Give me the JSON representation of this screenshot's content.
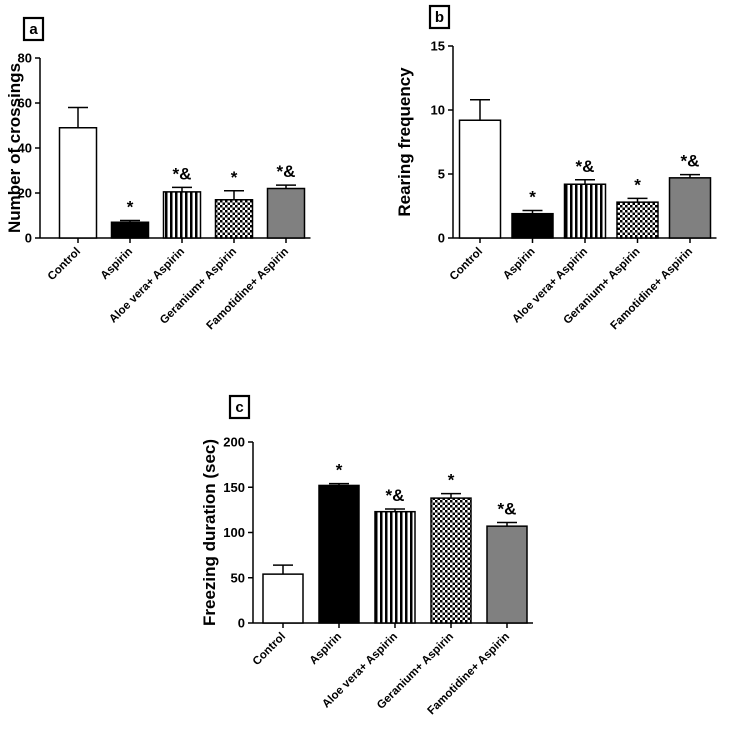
{
  "chart_data": [
    {
      "type": "bar",
      "panel_label": "a",
      "ylabel": "Number of crossings",
      "ylim": [
        0,
        80
      ],
      "yticks": [
        0,
        20,
        40,
        60,
        80
      ],
      "categories": [
        "Control",
        "Aspirin",
        "Aloe vera+ Aspirin",
        "Geranium+ Aspirin",
        "Famotidine+ Aspirin"
      ],
      "values": [
        49,
        7,
        20.5,
        17,
        22
      ],
      "errors": [
        9,
        0.8,
        2,
        4,
        1.5
      ],
      "annotations": [
        "",
        "*",
        "*&",
        "*",
        "*&"
      ]
    },
    {
      "type": "bar",
      "panel_label": "b",
      "ylabel": "Rearing frequency",
      "ylim": [
        0,
        15
      ],
      "yticks": [
        0,
        5,
        10,
        15
      ],
      "categories": [
        "Control",
        "Aspirin",
        "Aloe vera+ Aspirin",
        "Geranium+ Aspirin",
        "Famotidine+ Aspirin"
      ],
      "values": [
        9.2,
        1.9,
        4.2,
        2.8,
        4.7
      ],
      "errors": [
        1.6,
        0.25,
        0.35,
        0.3,
        0.25
      ],
      "annotations": [
        "",
        "*",
        "*&",
        "*",
        "*&"
      ]
    },
    {
      "type": "bar",
      "panel_label": "c",
      "ylabel": "Freezing duration (sec)",
      "ylim": [
        0,
        200
      ],
      "yticks": [
        0,
        50,
        100,
        150,
        200
      ],
      "categories": [
        "Control",
        "Aspirin",
        "Aloe vera+ Aspirin",
        "Geranium+ Aspirin",
        "Famotidine+ Aspirin"
      ],
      "values": [
        54,
        152,
        123,
        138,
        107
      ],
      "errors": [
        10,
        2,
        3,
        5,
        4
      ],
      "annotations": [
        "",
        "*",
        "*&",
        "*",
        "*&"
      ]
    }
  ],
  "fill_styles": [
    "white",
    "black",
    "stripes",
    "checker",
    "gray"
  ]
}
